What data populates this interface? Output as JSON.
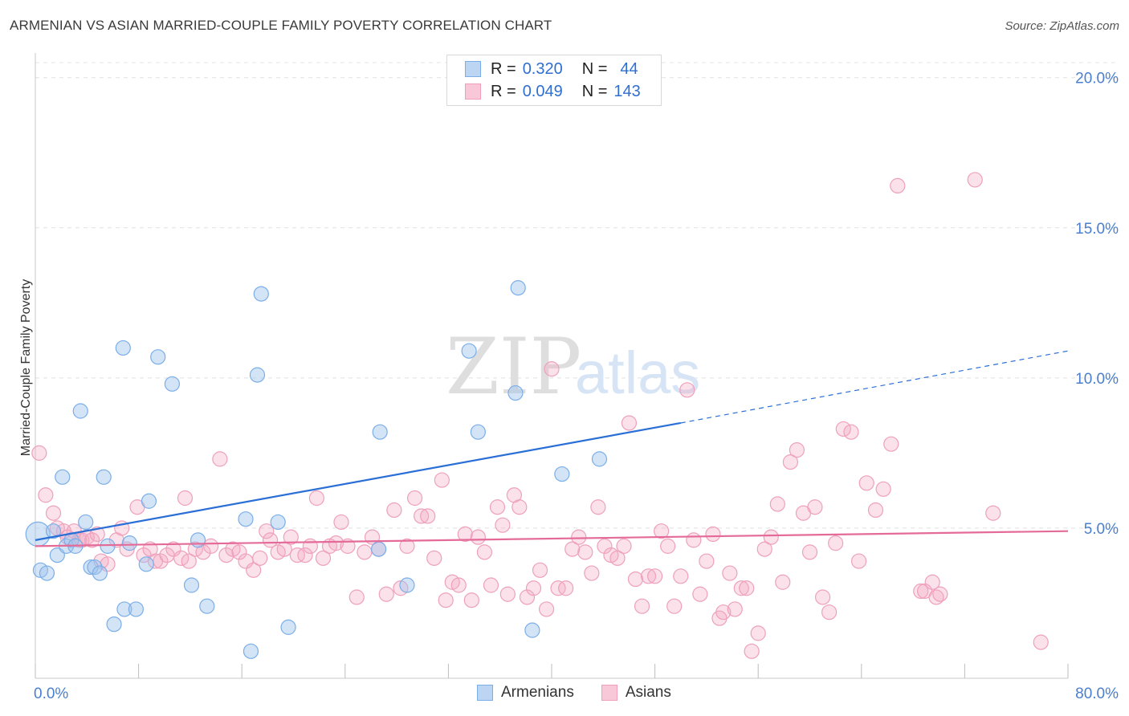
{
  "title": "ARMENIAN VS ASIAN MARRIED-COUPLE FAMILY POVERTY CORRELATION CHART",
  "source": "Source: ZipAtlas.com",
  "watermark": {
    "zip": "ZIP",
    "atlas": "atlas"
  },
  "legend": {
    "armenians": {
      "r_label": "R =",
      "r_value": "0.320",
      "n_label": "N =",
      "n_value": "44"
    },
    "asians": {
      "r_label": "R =",
      "r_value": "0.049",
      "n_label": "N =",
      "n_value": "143"
    }
  },
  "bottom_legend": {
    "armenians": "Armenians",
    "asians": "Asians"
  },
  "chart_data": {
    "type": "scatter",
    "title": "ARMENIAN VS ASIAN MARRIED-COUPLE FAMILY POVERTY CORRELATION CHART",
    "xlabel": "",
    "ylabel": "Married-Couple Family Poverty",
    "xlim": [
      0,
      80
    ],
    "ylim": [
      0,
      20.5
    ],
    "x_tick_labels": [
      "0.0%",
      "80.0%"
    ],
    "y_ticks": [
      5,
      10,
      15,
      20
    ],
    "y_tick_labels": [
      "5.0%",
      "10.0%",
      "15.0%",
      "20.0%"
    ],
    "grid": true,
    "colors": {
      "armenians": "#7aaee8",
      "asians": "#f0a0bc",
      "armenians_line": "#2a6fd6",
      "asians_line": "#e46a98"
    },
    "series": [
      {
        "name": "Armenians",
        "trend": {
          "x0": 0,
          "y0": 4.6,
          "x1": 50,
          "y1": 8.5,
          "dashed_to_x": 80,
          "dashed_to_y": 10.9
        },
        "points": [
          [
            0.2,
            4.8
          ],
          [
            0.4,
            3.6
          ],
          [
            0.9,
            3.5
          ],
          [
            1.4,
            4.9
          ],
          [
            1.7,
            4.1
          ],
          [
            2.1,
            6.7
          ],
          [
            2.4,
            4.4
          ],
          [
            2.8,
            4.6
          ],
          [
            3.1,
            4.4
          ],
          [
            3.5,
            8.9
          ],
          [
            3.9,
            5.2
          ],
          [
            4.3,
            3.7
          ],
          [
            4.6,
            3.7
          ],
          [
            5.0,
            3.5
          ],
          [
            5.3,
            6.7
          ],
          [
            5.6,
            4.4
          ],
          [
            6.1,
            1.8
          ],
          [
            6.8,
            11.0
          ],
          [
            6.9,
            2.3
          ],
          [
            7.3,
            4.5
          ],
          [
            7.8,
            2.3
          ],
          [
            8.6,
            3.8
          ],
          [
            8.8,
            5.9
          ],
          [
            9.5,
            10.7
          ],
          [
            10.6,
            9.8
          ],
          [
            12.1,
            3.1
          ],
          [
            12.6,
            4.6
          ],
          [
            13.3,
            2.4
          ],
          [
            16.3,
            5.3
          ],
          [
            16.7,
            0.9
          ],
          [
            17.2,
            10.1
          ],
          [
            17.5,
            12.8
          ],
          [
            18.8,
            5.2
          ],
          [
            19.6,
            1.7
          ],
          [
            26.6,
            4.3
          ],
          [
            26.7,
            8.2
          ],
          [
            28.8,
            3.1
          ],
          [
            33.6,
            10.9
          ],
          [
            34.3,
            8.2
          ],
          [
            37.2,
            9.5
          ],
          [
            37.4,
            13.0
          ],
          [
            38.5,
            1.6
          ],
          [
            40.8,
            6.8
          ],
          [
            43.7,
            7.3
          ]
        ]
      },
      {
        "name": "Asians",
        "trend": {
          "x0": 0,
          "y0": 4.4,
          "x1": 80,
          "y1": 4.9
        },
        "points": [
          [
            0.3,
            7.5
          ],
          [
            0.8,
            6.1
          ],
          [
            1.4,
            5.5
          ],
          [
            1.7,
            5.0
          ],
          [
            2.2,
            4.9
          ],
          [
            2.5,
            4.7
          ],
          [
            3.0,
            4.9
          ],
          [
            3.4,
            4.6
          ],
          [
            3.6,
            4.6
          ],
          [
            4.0,
            4.7
          ],
          [
            4.4,
            4.6
          ],
          [
            4.8,
            4.8
          ],
          [
            5.1,
            3.9
          ],
          [
            5.6,
            3.8
          ],
          [
            6.3,
            4.6
          ],
          [
            6.7,
            5.0
          ],
          [
            7.1,
            4.3
          ],
          [
            7.9,
            5.7
          ],
          [
            8.4,
            4.1
          ],
          [
            8.9,
            4.3
          ],
          [
            9.3,
            3.9
          ],
          [
            9.7,
            3.9
          ],
          [
            10.2,
            4.1
          ],
          [
            10.7,
            4.3
          ],
          [
            11.3,
            4.0
          ],
          [
            11.6,
            6.0
          ],
          [
            11.9,
            3.9
          ],
          [
            12.4,
            4.3
          ],
          [
            13.0,
            4.2
          ],
          [
            13.6,
            4.4
          ],
          [
            14.3,
            7.3
          ],
          [
            14.8,
            4.1
          ],
          [
            15.3,
            4.3
          ],
          [
            15.8,
            4.2
          ],
          [
            16.3,
            3.9
          ],
          [
            16.9,
            3.6
          ],
          [
            17.4,
            4.0
          ],
          [
            17.9,
            4.9
          ],
          [
            18.2,
            4.6
          ],
          [
            18.8,
            4.2
          ],
          [
            19.3,
            4.3
          ],
          [
            19.8,
            4.7
          ],
          [
            20.3,
            4.1
          ],
          [
            20.9,
            4.1
          ],
          [
            21.3,
            4.4
          ],
          [
            21.8,
            6.0
          ],
          [
            22.3,
            4.0
          ],
          [
            22.8,
            4.4
          ],
          [
            23.3,
            4.5
          ],
          [
            23.7,
            5.2
          ],
          [
            24.2,
            4.4
          ],
          [
            24.9,
            2.7
          ],
          [
            25.5,
            4.2
          ],
          [
            26.1,
            4.7
          ],
          [
            26.6,
            4.3
          ],
          [
            27.2,
            2.8
          ],
          [
            27.8,
            5.6
          ],
          [
            28.3,
            3.0
          ],
          [
            28.8,
            4.4
          ],
          [
            29.4,
            6.0
          ],
          [
            29.9,
            5.4
          ],
          [
            30.4,
            5.4
          ],
          [
            30.9,
            4.0
          ],
          [
            31.5,
            6.6
          ],
          [
            31.8,
            2.6
          ],
          [
            32.3,
            3.2
          ],
          [
            32.8,
            3.1
          ],
          [
            33.3,
            4.8
          ],
          [
            33.8,
            2.6
          ],
          [
            34.3,
            4.7
          ],
          [
            34.8,
            4.2
          ],
          [
            35.3,
            3.1
          ],
          [
            35.8,
            5.7
          ],
          [
            36.2,
            5.1
          ],
          [
            36.6,
            2.8
          ],
          [
            37.1,
            6.1
          ],
          [
            37.5,
            5.7
          ],
          [
            38.1,
            2.7
          ],
          [
            38.6,
            3.0
          ],
          [
            39.1,
            3.6
          ],
          [
            39.6,
            2.3
          ],
          [
            40.0,
            10.3
          ],
          [
            40.5,
            3.0
          ],
          [
            41.1,
            3.0
          ],
          [
            41.6,
            4.3
          ],
          [
            42.1,
            4.7
          ],
          [
            42.6,
            4.2
          ],
          [
            43.1,
            3.5
          ],
          [
            43.6,
            5.7
          ],
          [
            44.1,
            4.4
          ],
          [
            44.6,
            4.1
          ],
          [
            45.1,
            4.0
          ],
          [
            45.6,
            4.4
          ],
          [
            46.0,
            8.5
          ],
          [
            46.5,
            3.3
          ],
          [
            47.0,
            2.4
          ],
          [
            47.5,
            3.4
          ],
          [
            48.0,
            3.4
          ],
          [
            48.5,
            4.9
          ],
          [
            49.0,
            4.4
          ],
          [
            49.5,
            2.4
          ],
          [
            50.0,
            3.4
          ],
          [
            50.5,
            9.6
          ],
          [
            51.0,
            4.6
          ],
          [
            51.5,
            2.8
          ],
          [
            52.0,
            3.9
          ],
          [
            52.5,
            4.8
          ],
          [
            53.0,
            2.0
          ],
          [
            53.3,
            2.2
          ],
          [
            53.8,
            3.5
          ],
          [
            54.2,
            2.3
          ],
          [
            54.7,
            3.0
          ],
          [
            55.1,
            3.0
          ],
          [
            55.5,
            0.9
          ],
          [
            56.0,
            1.5
          ],
          [
            56.5,
            4.3
          ],
          [
            57.0,
            4.7
          ],
          [
            57.5,
            5.8
          ],
          [
            57.9,
            3.2
          ],
          [
            58.5,
            7.2
          ],
          [
            59.0,
            7.6
          ],
          [
            59.5,
            5.5
          ],
          [
            60.0,
            4.2
          ],
          [
            60.4,
            5.7
          ],
          [
            61.0,
            2.7
          ],
          [
            61.5,
            2.2
          ],
          [
            62.0,
            4.5
          ],
          [
            62.6,
            8.3
          ],
          [
            63.2,
            8.2
          ],
          [
            63.8,
            3.9
          ],
          [
            64.4,
            6.5
          ],
          [
            65.1,
            5.6
          ],
          [
            65.7,
            6.3
          ],
          [
            66.3,
            7.8
          ],
          [
            66.8,
            16.4
          ],
          [
            68.6,
            2.9
          ],
          [
            68.9,
            2.9
          ],
          [
            69.5,
            3.2
          ],
          [
            69.8,
            2.7
          ],
          [
            70.1,
            2.8
          ],
          [
            72.8,
            16.6
          ],
          [
            74.2,
            5.5
          ],
          [
            77.9,
            1.2
          ]
        ]
      }
    ]
  }
}
